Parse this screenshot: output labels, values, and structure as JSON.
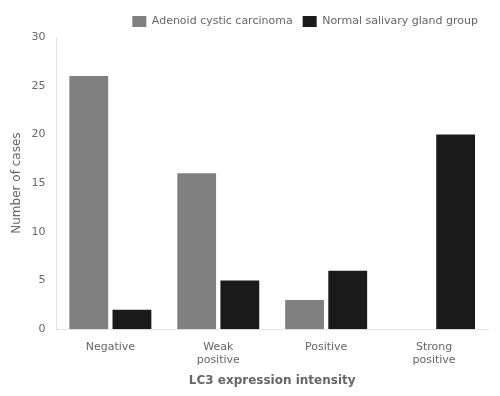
{
  "chart_data": {
    "type": "bar",
    "xlabel": "LC3 expression intensity",
    "ylabel": "Number of cases",
    "categories": [
      "Negative",
      "Weak\npositive",
      "Positive",
      "Strong\npositive"
    ],
    "series": [
      {
        "name": "Adenoid cystic carcinoma",
        "color": "#808080",
        "values": [
          26,
          16,
          3,
          0
        ]
      },
      {
        "name": "Normal salivary gland group",
        "color": "#1a1a1a",
        "values": [
          2,
          5,
          6,
          20
        ]
      }
    ],
    "ylim": [
      0,
      30
    ],
    "yticks": [
      0,
      5,
      10,
      15,
      20,
      25,
      30
    ],
    "grid": false,
    "legend": "upper right"
  }
}
